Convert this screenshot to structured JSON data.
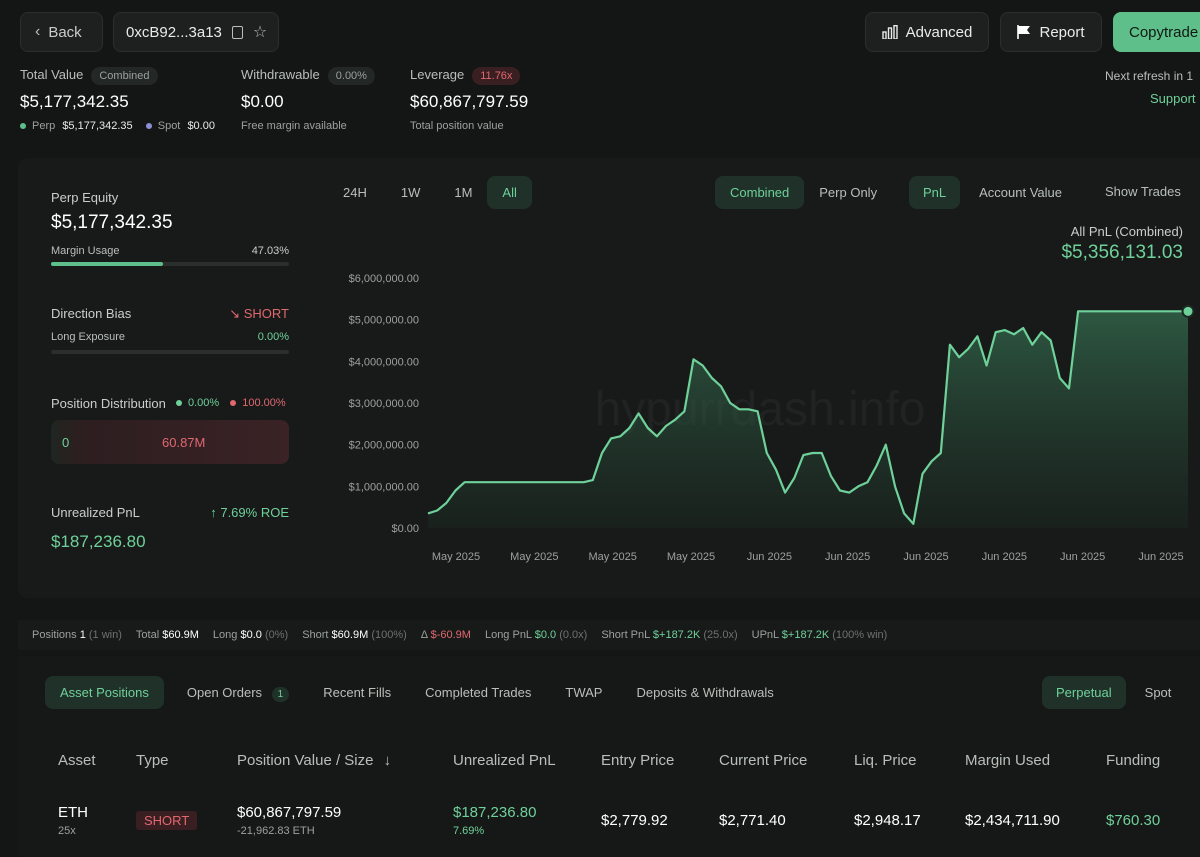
{
  "header": {
    "back_label": "Back",
    "address": "0xcB92...3a13",
    "advanced_label": "Advanced",
    "report_label": "Report",
    "copytrade_label": "Copytrade",
    "next_refresh": "Next refresh in 1",
    "support_label": "Support"
  },
  "summary": {
    "total_value_label": "Total Value",
    "total_value_badge": "Combined",
    "total_value": "$5,177,342.35",
    "perp_label": "Perp",
    "perp_value": "$5,177,342.35",
    "spot_label": "Spot",
    "spot_value": "$0.00",
    "withdrawable_label": "Withdrawable",
    "withdrawable_badge": "0.00%",
    "withdrawable_value": "$0.00",
    "withdrawable_sub": "Free margin available",
    "leverage_label": "Leverage",
    "leverage_badge": "11.76x",
    "leverage_value": "$60,867,797.59",
    "leverage_sub": "Total position value"
  },
  "side": {
    "perp_equity_label": "Perp Equity",
    "perp_equity_value": "$5,177,342.35",
    "margin_usage_label": "Margin Usage",
    "margin_usage_value": "47.03%",
    "margin_usage_fraction": 0.4703,
    "direction_bias_label": "Direction Bias",
    "direction_bias_value": "SHORT",
    "long_exposure_label": "Long Exposure",
    "long_exposure_value": "0.00%",
    "position_distribution_label": "Position Distribution",
    "dist_long_pct": "0.00%",
    "dist_short_pct": "100.00%",
    "dist_long_value": "0",
    "dist_short_value": "60.87M",
    "unrealized_pnl_label": "Unrealized PnL",
    "roe": "7.69% ROE",
    "unrealized_pnl_value": "$187,236.80"
  },
  "chart_controls": {
    "ranges": [
      "24H",
      "1W",
      "1M",
      "All"
    ],
    "modes": [
      "Combined",
      "Perp Only"
    ],
    "metrics": [
      "PnL",
      "Account Value"
    ],
    "show_trades": "Show Trades",
    "summary_label": "All PnL (Combined)",
    "summary_value": "$5,356,131.03",
    "watermark": "hypurrdash.info"
  },
  "chart_data": {
    "type": "area",
    "y_ticks": [
      "$6,000,000.00",
      "$5,000,000.00",
      "$4,000,000.00",
      "$3,000,000.00",
      "$2,000,000.00",
      "$1,000,000.00",
      "$0.00"
    ],
    "x_ticks": [
      "May 2025",
      "May 2025",
      "May 2025",
      "May 2025",
      "Jun 2025",
      "Jun 2025",
      "Jun 2025",
      "Jun 2025",
      "Jun 2025",
      "Jun 2025"
    ],
    "ylim": [
      0,
      6000000
    ],
    "color": "#6fd19a",
    "series": [
      {
        "values": [
          350000,
          420000,
          600000,
          900000,
          1100000,
          1100000,
          1100000,
          1100000,
          1100000,
          1100000,
          1100000,
          1100000,
          1100000,
          1100000,
          1100000,
          1100000,
          1100000,
          1100000,
          1150000,
          1800000,
          2150000,
          2200000,
          2400000,
          2750000,
          2400000,
          2200000,
          2450000,
          2600000,
          2800000,
          4050000,
          3900000,
          3600000,
          3400000,
          3000000,
          2850000,
          2850000,
          2800000,
          1800000,
          1400000,
          850000,
          1200000,
          1750000,
          1800000,
          1800000,
          1250000,
          900000,
          850000,
          1000000,
          1100000,
          1500000,
          2000000,
          1000000,
          350000,
          100000,
          1300000,
          1600000,
          1800000,
          4400000,
          4100000,
          4300000,
          4600000,
          3900000,
          4700000,
          4750000,
          4650000,
          4800000,
          4400000,
          4700000,
          4500000,
          3600000,
          3350000,
          5200000,
          5200000,
          5200000,
          5200000,
          5200000,
          5200000,
          5200000,
          5200000,
          5200000,
          5200000,
          5200000,
          5200000,
          5200000
        ]
      }
    ]
  },
  "stats": {
    "positions_label": "Positions",
    "positions_value": "1",
    "positions_win": "(1 win)",
    "total_label": "Total",
    "total_value": "$60.9M",
    "long_label": "Long",
    "long_value": "$0.0",
    "long_pct": "(0%)",
    "short_label": "Short",
    "short_value": "$60.9M",
    "short_pct": "(100%)",
    "delta_label": "Δ",
    "delta_value": "$-60.9M",
    "long_pnl_label": "Long PnL",
    "long_pnl_value": "$0.0",
    "long_pnl_x": "(0.0x)",
    "short_pnl_label": "Short PnL",
    "short_pnl_value": "$+187.2K",
    "short_pnl_x": "(25.0x)",
    "upnl_label": "UPnL",
    "upnl_value": "$+187.2K",
    "upnl_win": "(100% win)"
  },
  "bottom_tabs": {
    "asset_positions": "Asset Positions",
    "open_orders": "Open Orders",
    "open_orders_count": "1",
    "recent_fills": "Recent Fills",
    "completed_trades": "Completed Trades",
    "twap": "TWAP",
    "deposits": "Deposits & Withdrawals",
    "perpetual": "Perpetual",
    "spot": "Spot"
  },
  "table": {
    "headers": [
      "Asset",
      "Type",
      "Position Value / Size",
      "Unrealized PnL",
      "Entry Price",
      "Current Price",
      "Liq. Price",
      "Margin Used",
      "Funding"
    ],
    "row": {
      "asset": "ETH",
      "leverage": "25x",
      "type": "SHORT",
      "position_value": "$60,867,797.59",
      "position_size": "-21,962.83 ETH",
      "upnl": "$187,236.80",
      "upnl_pct": "7.69%",
      "entry": "$2,779.92",
      "current": "$2,771.40",
      "liq": "$2,948.17",
      "margin": "$2,434,711.90",
      "funding": "$760.30"
    }
  }
}
